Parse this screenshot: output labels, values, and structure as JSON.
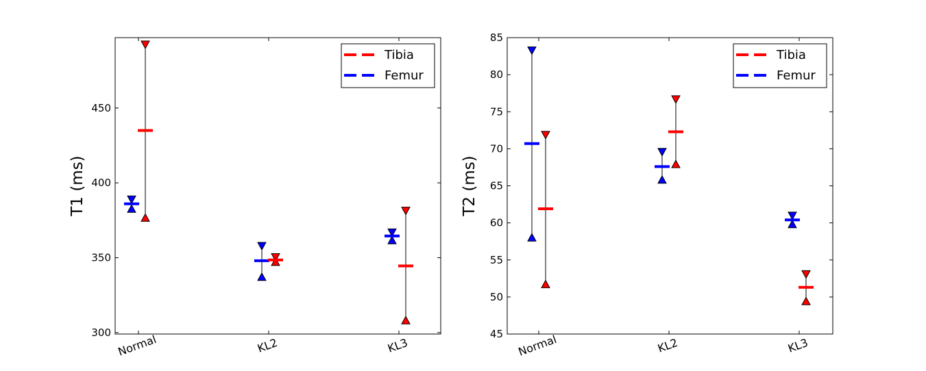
{
  "chart_data": [
    {
      "type": "scatter",
      "title": "",
      "xlabel": "",
      "ylabel": "T1 (ms)",
      "categories": [
        "Normal",
        "KL2",
        "KL3"
      ],
      "ylim": [
        299,
        497
      ],
      "yticks": [
        300,
        350,
        400,
        450
      ],
      "legend": "top-right",
      "series": [
        {
          "name": "Tibia",
          "color": "#ff0000",
          "mean": [
            435,
            348.5,
            344.5
          ],
          "upper": [
            492,
            350,
            381
          ],
          "lower": [
            377,
            347.5,
            308.5
          ]
        },
        {
          "name": "Femur",
          "color": "#0000ff",
          "mean": [
            386,
            348,
            364.5
          ],
          "upper": [
            388.5,
            357.5,
            366.5
          ],
          "lower": [
            383,
            337.5,
            362
          ]
        }
      ]
    },
    {
      "type": "scatter",
      "title": "",
      "xlabel": "",
      "ylabel": "T2 (ms)",
      "categories": [
        "Normal",
        "KL2",
        "KL3"
      ],
      "ylim": [
        45,
        85
      ],
      "yticks": [
        45,
        50,
        55,
        60,
        65,
        70,
        75,
        80,
        85
      ],
      "legend": "top-right",
      "series": [
        {
          "name": "Tibia",
          "color": "#ff0000",
          "mean": [
            61.9,
            72.3,
            51.3
          ],
          "upper": [
            71.8,
            76.6,
            53.0
          ],
          "lower": [
            51.8,
            68.0,
            49.5
          ]
        },
        {
          "name": "Femur",
          "color": "#0000ff",
          "mean": [
            70.7,
            67.6,
            60.4
          ],
          "upper": [
            83.2,
            69.5,
            60.9
          ],
          "lower": [
            58.1,
            65.9,
            59.9
          ]
        }
      ]
    }
  ]
}
